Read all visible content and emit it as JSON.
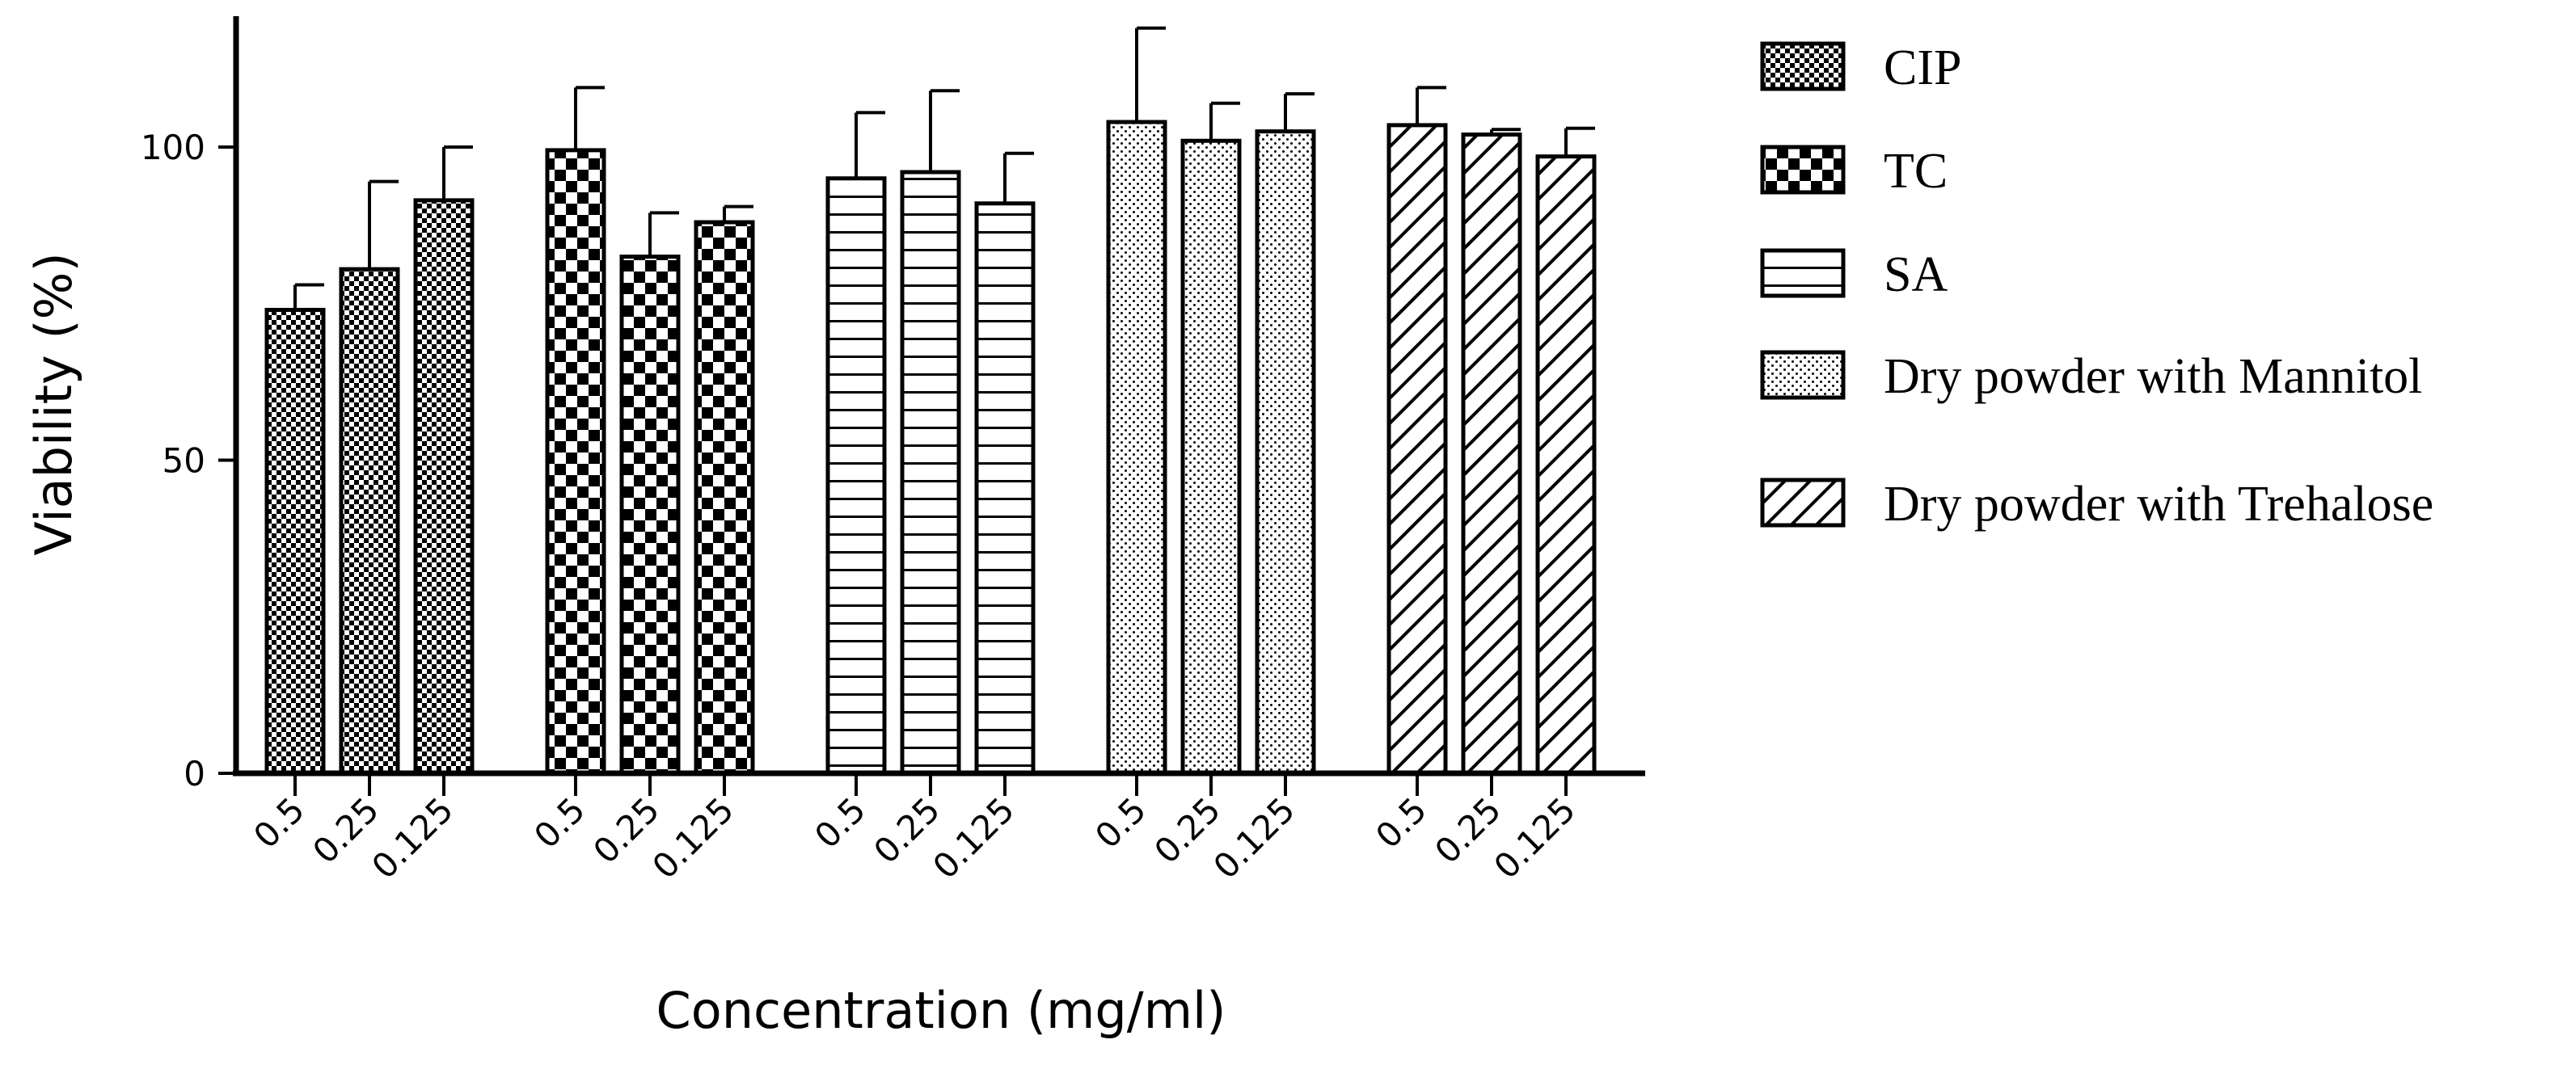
{
  "chart_data": {
    "type": "bar",
    "title": "",
    "xlabel": "Concentration (mg/ml)",
    "ylabel": "Viability (%)",
    "ylim": [
      0,
      120
    ],
    "yticks": [
      "0",
      "50",
      "100"
    ],
    "grid": false,
    "legend_position": "right",
    "categories": [
      "0.5",
      "0.25",
      "0.125"
    ],
    "series": [
      {
        "name": "CIP",
        "pattern": "fine-checker",
        "values": [
          74,
          80.5,
          91.5
        ],
        "errors": [
          4,
          14,
          8.5
        ]
      },
      {
        "name": "TC",
        "pattern": "coarse-checker",
        "values": [
          99.5,
          82.5,
          88
        ],
        "errors": [
          10,
          7,
          2.5
        ]
      },
      {
        "name": "SA",
        "pattern": "horizontal-lines",
        "values": [
          95,
          96,
          91
        ],
        "errors": [
          10.5,
          13,
          8
        ]
      },
      {
        "name": "Dry powder with Mannitol",
        "pattern": "dots",
        "values": [
          104,
          101,
          102.5
        ],
        "errors": [
          15,
          6,
          6
        ]
      },
      {
        "name": "Dry powder with Trehalose",
        "pattern": "diagonal",
        "values": [
          103.5,
          102,
          98.5
        ],
        "errors": [
          6,
          0.8,
          4.5
        ]
      }
    ]
  }
}
